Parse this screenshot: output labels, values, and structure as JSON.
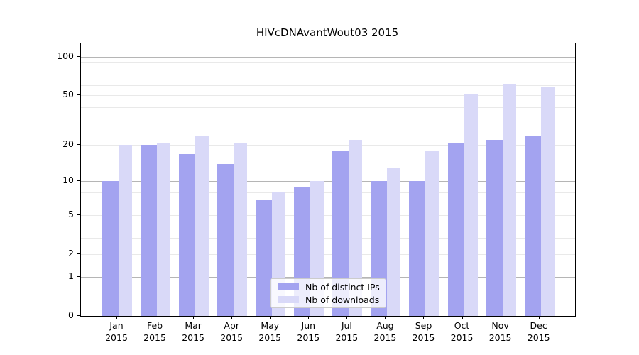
{
  "title": "HIVcDNAvantWout03 2015",
  "chart_data": {
    "type": "bar",
    "title": "HIVcDNAvantWout03 2015",
    "categories": [
      "Jan",
      "Feb",
      "Mar",
      "Apr",
      "May",
      "Jun",
      "Jul",
      "Aug",
      "Sep",
      "Oct",
      "Nov",
      "Dec"
    ],
    "category_year": "2015",
    "series": [
      {
        "name": "Nb of distinct IPs",
        "color": "#a3a3f0",
        "values": [
          10,
          20,
          17,
          14,
          7,
          9,
          18,
          10,
          10,
          21,
          22,
          24
        ]
      },
      {
        "name": "Nb of downloads",
        "color": "#d9d9f8",
        "values": [
          20,
          21,
          24,
          21,
          8,
          10,
          22,
          13,
          18,
          51,
          62,
          58
        ]
      }
    ],
    "yaxis": {
      "scale": "log10(1+v)",
      "tick_labels": [
        0,
        1,
        2,
        5,
        10,
        20,
        50,
        100
      ],
      "major_gridlines": [
        1,
        10,
        100
      ],
      "minor_gridlines": [
        2,
        3,
        4,
        5,
        6,
        7,
        8,
        9,
        20,
        30,
        40,
        50,
        60,
        70,
        80,
        90
      ],
      "top_value": 100
    },
    "xlabel": "",
    "ylabel": "",
    "grid": true,
    "legend_position": "bottom-center"
  },
  "colors": {
    "series1": "#a3a3f0",
    "series2": "#d9d9f8",
    "major_grid": "#b5b5b5",
    "minor_grid": "#e9e9e9",
    "spine": "#000000",
    "legend_border": "#cccccc"
  }
}
